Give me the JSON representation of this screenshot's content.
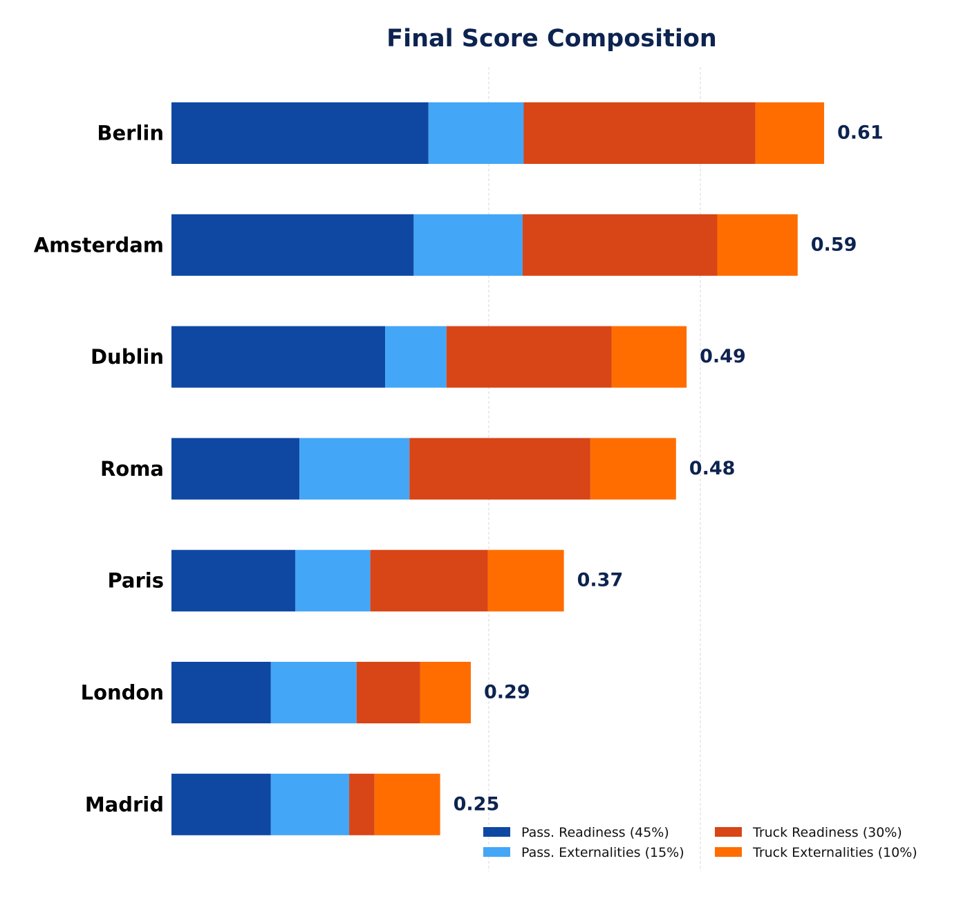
{
  "chart_data": {
    "type": "bar",
    "orientation": "horizontal",
    "stacked": true,
    "title": "Final Score Composition",
    "xlabel": "",
    "ylabel": "",
    "xlim": [
      0,
      0.65
    ],
    "grid": "vertical dashed",
    "legend_position": "bottom-right",
    "categories": [
      "Berlin",
      "Amsterdam",
      "Dublin",
      "Roma",
      "Paris",
      "London",
      "Madrid"
    ],
    "totals": [
      "0.61",
      "0.59",
      "0.49",
      "0.48",
      "0.37",
      "0.29",
      "0.25"
    ],
    "series": [
      {
        "name": "Pass. Readiness (45%)",
        "color": "#0f48a3",
        "values": [
          0.243,
          0.229,
          0.202,
          0.121,
          0.117,
          0.094,
          0.094
        ]
      },
      {
        "name": "Pass. Externalities (15%)",
        "color": "#44a6f6",
        "values": [
          0.09,
          0.103,
          0.058,
          0.104,
          0.071,
          0.081,
          0.074
        ]
      },
      {
        "name": "Truck Readiness (30%)",
        "color": "#d84516",
        "values": [
          0.219,
          0.184,
          0.156,
          0.171,
          0.111,
          0.06,
          0.024
        ]
      },
      {
        "name": "Truck Externalities (10%)",
        "color": "#ff6d00",
        "values": [
          0.065,
          0.076,
          0.071,
          0.081,
          0.072,
          0.048,
          0.062
        ]
      }
    ]
  },
  "colors": {
    "title": "#0d2350",
    "total_label": "#0d2350",
    "grid": "#d9d9d9"
  }
}
